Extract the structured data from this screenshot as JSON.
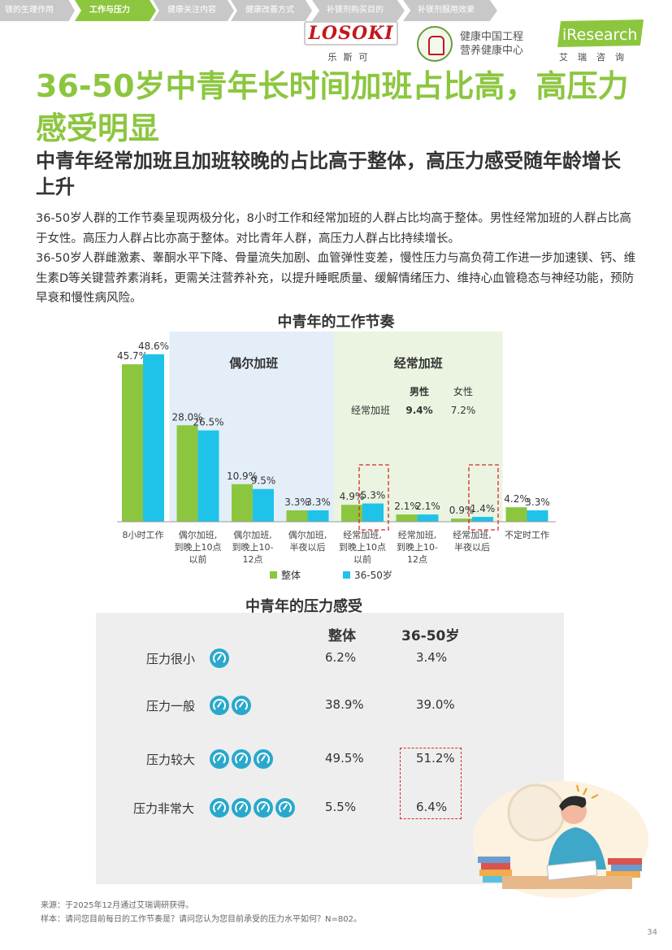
{
  "nav": {
    "tabs": [
      {
        "label": "镁的生理作用",
        "active": false
      },
      {
        "label": "工作与压力",
        "active": true
      },
      {
        "label": "健康关注内容",
        "active": false
      },
      {
        "label": "健康改善方式",
        "active": false
      },
      {
        "label": "补镁剂购买目的",
        "active": false
      },
      {
        "label": "补镁剂服用效果",
        "active": false
      }
    ]
  },
  "logos": {
    "losoki": "LOSOKI",
    "losoki_cn": "乐斯可",
    "health_center_line1": "健康中国工程",
    "health_center_line2": "营养健康中心",
    "iresearch": "iResearch",
    "iresearch_cn": "艾瑞咨询"
  },
  "title": "36-50岁中青年长时间加班占比高，高压力感受明显",
  "subtitle": "中青年经常加班且加班较晚的占比高于整体，高压力感受随年龄增长上升",
  "body": [
    "36-50岁人群的工作节奏呈现两极分化，8小时工作和经常加班的人群占比均高于整体。男性经常加班的人群占比高于女性。高压力人群占比亦高于整体。对比青年人群，高压力人群占比持续增长。",
    "36-50岁人群雌激素、睾酮水平下降、骨量流失加剧、血管弹性变差，慢性压力与高负荷工作进一步加速镁、钙、维生素D等关键营养素消耗，更需关注营养补充，以提升睡眠质量、缓解情绪压力、维持心血管稳态与神经功能，预防早衰和慢性病风险。"
  ],
  "chart_data": [
    {
      "type": "bar",
      "title": "中青年的工作节奏",
      "categories": [
        "8小时工作",
        "偶尔加班，到晚上10点以前",
        "偶尔加班，到晚上10-12点",
        "偶尔加班，半夜以后",
        "经常加班，到晚上10点以前",
        "经常加班，到晚上10-12点",
        "经常加班，半夜以后",
        "不定时工作"
      ],
      "category_lines": [
        [
          "8小时工作"
        ],
        [
          "偶尔加班,",
          "到晚上10点",
          "以前"
        ],
        [
          "偶尔加班,",
          "到晚上10-",
          "12点"
        ],
        [
          "偶尔加班,",
          "半夜以后"
        ],
        [
          "经常加班,",
          "到晚上10点",
          "以前"
        ],
        [
          "经常加班,",
          "到晚上10-",
          "12点"
        ],
        [
          "经常加班,",
          "半夜以后"
        ],
        [
          "不定时工作"
        ]
      ],
      "series": [
        {
          "name": "整体",
          "color": "#8cc63f",
          "values": [
            45.7,
            28.0,
            10.9,
            3.3,
            4.9,
            2.1,
            0.9,
            4.2
          ]
        },
        {
          "name": "36-50岁",
          "color": "#1fc3ea",
          "values": [
            48.6,
            26.5,
            9.5,
            3.3,
            5.3,
            2.1,
            1.4,
            3.3
          ]
        }
      ],
      "ylim": [
        0,
        50
      ],
      "groups": [
        {
          "label": "偶尔加班",
          "color": "#e4eef9",
          "from": 1,
          "to": 3
        },
        {
          "label": "经常加班",
          "color": "#eaf4e0",
          "from": 4,
          "to": 6
        }
      ],
      "gender_table": {
        "headers": [
          "男性",
          "女性"
        ],
        "row_label": "经常加班",
        "values": [
          "9.4%",
          "7.2%"
        ]
      },
      "legend": "bottom"
    },
    {
      "type": "table",
      "title": "中青年的压力感受",
      "columns": [
        "整体",
        "36-50岁"
      ],
      "rows": [
        {
          "label": "压力很小",
          "level": 1,
          "values": [
            "6.2%",
            "3.4%"
          ]
        },
        {
          "label": "压力一般",
          "level": 2,
          "values": [
            "38.9%",
            "39.0%"
          ]
        },
        {
          "label": "压力较大",
          "level": 3,
          "values": [
            "49.5%",
            "51.2%"
          ]
        },
        {
          "label": "压力非常大",
          "level": 4,
          "values": [
            "5.5%",
            "6.4%"
          ]
        }
      ]
    }
  ],
  "footnotes": {
    "source": "来源：于2025年12月通过艾瑞调研获得。",
    "sample": "样本：请问您目前每日的工作节奏是？请问您认为您目前承受的压力水平如何？N=802。"
  },
  "page_number": "34"
}
